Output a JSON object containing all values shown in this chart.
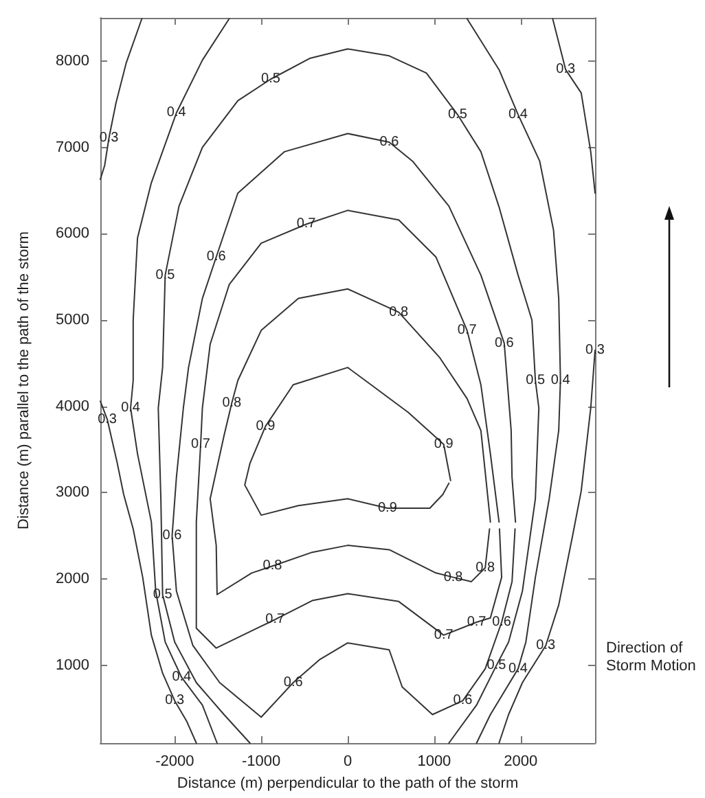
{
  "chart_data": {
    "type": "line",
    "xlabel": "Distance (m) perpendicular to the path of the storm",
    "ylabel": "Distance (m) parallel to the path of the storm",
    "xlim": [
      -2860,
      2860
    ],
    "ylim": [
      100,
      8500
    ],
    "xticks": [
      -2000,
      -1000,
      0,
      1000,
      2000
    ],
    "yticks": [
      1000,
      2000,
      3000,
      4000,
      5000,
      6000,
      7000,
      8000
    ],
    "grid": false,
    "marker": "none",
    "line_style": "solid",
    "series": [
      {
        "color": "#333333",
        "x": [
          -2380,
          -2560,
          -2680,
          -2760,
          -2810,
          -2860
        ],
        "values": [
          8490,
          7980,
          7510,
          7110,
          6790,
          6630
        ]
      },
      {
        "color": "#333333",
        "x": [
          -2860,
          -2780,
          -2670,
          -2590,
          -2480,
          -2370,
          -2270,
          -2140,
          -2000,
          -1860,
          -1750
        ],
        "values": [
          4060,
          3850,
          3370,
          2980,
          2580,
          2020,
          1350,
          910,
          590,
          350,
          100
        ]
      },
      {
        "color": "#333333",
        "x": [
          2370,
          2520,
          2700,
          2810,
          2860
        ],
        "values": [
          8490,
          7900,
          7630,
          6950,
          6470
        ]
      },
      {
        "color": "#333333",
        "x": [
          2860,
          2810,
          2700,
          2600,
          2440,
          2290,
          2020,
          1860,
          1750
        ],
        "values": [
          4650,
          3980,
          3020,
          2500,
          1700,
          1230,
          800,
          430,
          100
        ]
      },
      {
        "color": "#333333",
        "x": [
          -1370,
          -1680,
          -1980,
          -2270,
          -2430,
          -2480,
          -2480,
          -2510,
          -2430,
          -2270,
          -2220,
          -2110,
          -1920,
          -1680,
          -1510
        ],
        "values": [
          8490,
          8010,
          7400,
          6590,
          5950,
          5000,
          4300,
          3980,
          3450,
          2660,
          1860,
          1270,
          860,
          540,
          100
        ]
      },
      {
        "color": "#333333",
        "x": [
          1380,
          1750,
          1970,
          2220,
          2380,
          2440,
          2460,
          2440,
          2330,
          2170,
          2060,
          1970,
          1650,
          1490
        ],
        "values": [
          8490,
          7900,
          7380,
          6840,
          6040,
          5250,
          4300,
          3720,
          2930,
          2020,
          1270,
          960,
          430,
          100
        ]
      },
      {
        "color": "#333333",
        "x": [
          -1130,
          -1430,
          -1750,
          -2000,
          -2140,
          -2160,
          -2190,
          -2140,
          -2110,
          -1950,
          -1680,
          -1270,
          -890,
          -440,
          0,
          480,
          910,
          1270,
          1540,
          1750,
          1970,
          2130,
          2170,
          2210,
          2170,
          2020,
          1860,
          1720,
          1490,
          1170
        ],
        "values": [
          100,
          430,
          800,
          1270,
          1820,
          2930,
          3980,
          4450,
          5520,
          6320,
          7000,
          7540,
          7790,
          8030,
          8140,
          8060,
          7860,
          7380,
          6950,
          6310,
          5520,
          5000,
          4300,
          3980,
          2930,
          1860,
          1270,
          1000,
          540,
          100
        ]
      },
      {
        "color": "#333333",
        "x": [
          1940,
          1900,
          1890,
          1810,
          1540,
          1170,
          750,
          480,
          0,
          -730,
          -1270,
          -1520,
          -1680,
          -1840,
          -1900,
          -1980,
          -2030,
          -1980,
          -1790,
          -1480,
          -1000,
          -630,
          -320,
          0,
          480,
          630,
          980,
          1330,
          1590,
          1780,
          1900,
          1935
        ],
        "values": [
          2660,
          3180,
          3720,
          4730,
          5520,
          6320,
          6840,
          7060,
          7160,
          6950,
          6470,
          5730,
          5250,
          4450,
          3980,
          3180,
          2500,
          1860,
          1230,
          800,
          400,
          800,
          1070,
          1260,
          1180,
          750,
          430,
          590,
          960,
          1500,
          1970,
          2580
        ]
      },
      {
        "color": "#333333",
        "x": [
          1750,
          1650,
          1540,
          1380,
          1020,
          590,
          0,
          -480,
          -1000,
          -1370,
          -1590,
          -1680,
          -1700,
          -1750,
          -1750,
          -1750,
          -1520,
          -1050,
          -840,
          -410,
          0,
          590,
          1110,
          1490,
          1650,
          1780,
          1755
        ],
        "values": [
          2660,
          3450,
          4250,
          4880,
          5730,
          6160,
          6270,
          6110,
          5890,
          5410,
          4720,
          3980,
          3560,
          2660,
          1860,
          1430,
          1200,
          1430,
          1530,
          1750,
          1830,
          1740,
          1350,
          1500,
          1550,
          2020,
          2580
        ]
      },
      {
        "color": "#333333",
        "x": [
          1650,
          1540,
          1380,
          1060,
          590,
          0,
          -570,
          -1000,
          -1270,
          -1340,
          -1430,
          -1590,
          -1520,
          -1510,
          -1110,
          -870,
          -410,
          0,
          480,
          1020,
          1220,
          1430,
          1590,
          1640
        ],
        "values": [
          2660,
          3720,
          4090,
          4570,
          5090,
          5360,
          5250,
          4880,
          4300,
          4040,
          3660,
          2930,
          2390,
          1820,
          2070,
          2150,
          2310,
          2390,
          2340,
          2070,
          2020,
          1970,
          2130,
          2580
        ]
      },
      {
        "color": "#333333",
        "x": [
          1190,
          1110,
          700,
          270,
          0,
          -630,
          -950,
          -1130,
          -1190,
          -1000,
          -570,
          0,
          460,
          950,
          1100,
          1170
        ],
        "values": [
          3140,
          3560,
          3930,
          4250,
          4450,
          4250,
          3770,
          3340,
          3090,
          2740,
          2850,
          2930,
          2820,
          2820,
          2980,
          3110
        ]
      }
    ],
    "annotations": [
      {
        "text": "0.3",
        "x": -2760,
        "y": 7110
      },
      {
        "text": "0.3",
        "x": -2780,
        "y": 3850
      },
      {
        "text": "0.3",
        "x": -2000,
        "y": 590
      },
      {
        "text": "0.3",
        "x": 2520,
        "y": 7900
      },
      {
        "text": "0.3",
        "x": 2860,
        "y": 4650
      },
      {
        "text": "0.3",
        "x": 2290,
        "y": 1230
      },
      {
        "text": "0.4",
        "x": -1980,
        "y": 7400
      },
      {
        "text": "0.4",
        "x": -2510,
        "y": 3980
      },
      {
        "text": "0.4",
        "x": -1920,
        "y": 860
      },
      {
        "text": "0.4",
        "x": 1970,
        "y": 7380
      },
      {
        "text": "0.4",
        "x": 2460,
        "y": 4300
      },
      {
        "text": "0.4",
        "x": 1970,
        "y": 960
      },
      {
        "text": "0.5",
        "x": -890,
        "y": 7790
      },
      {
        "text": "0.5",
        "x": -2110,
        "y": 5520
      },
      {
        "text": "0.5",
        "x": -2140,
        "y": 1820
      },
      {
        "text": "0.5",
        "x": 1270,
        "y": 7380
      },
      {
        "text": "0.5",
        "x": 2170,
        "y": 4300
      },
      {
        "text": "0.5",
        "x": 1720,
        "y": 1000
      },
      {
        "text": "0.6",
        "x": -1520,
        "y": 5730
      },
      {
        "text": "0.6",
        "x": -2030,
        "y": 2500
      },
      {
        "text": "0.6",
        "x": -630,
        "y": 800
      },
      {
        "text": "0.6",
        "x": 480,
        "y": 7060
      },
      {
        "text": "0.6",
        "x": 1810,
        "y": 4730
      },
      {
        "text": "0.6",
        "x": 1330,
        "y": 590
      },
      {
        "text": "0.6",
        "x": 1780,
        "y": 1500
      },
      {
        "text": "0.7",
        "x": -480,
        "y": 6110
      },
      {
        "text": "0.7",
        "x": -1700,
        "y": 3560
      },
      {
        "text": "0.7",
        "x": -840,
        "y": 1530
      },
      {
        "text": "0.7",
        "x": 1380,
        "y": 4880
      },
      {
        "text": "0.7",
        "x": 1110,
        "y": 1350
      },
      {
        "text": "0.7",
        "x": 1490,
        "y": 1500
      },
      {
        "text": "0.8",
        "x": -1340,
        "y": 4040
      },
      {
        "text": "0.8",
        "x": -870,
        "y": 2150
      },
      {
        "text": "0.8",
        "x": 590,
        "y": 5090
      },
      {
        "text": "0.8",
        "x": 1220,
        "y": 2020
      },
      {
        "text": "0.8",
        "x": 1590,
        "y": 2130
      },
      {
        "text": "0.9",
        "x": -950,
        "y": 3770
      },
      {
        "text": "0.9",
        "x": 460,
        "y": 2820
      },
      {
        "text": "0.9",
        "x": 1110,
        "y": 3560
      },
      "Direction of Storm Motion"
    ]
  }
}
